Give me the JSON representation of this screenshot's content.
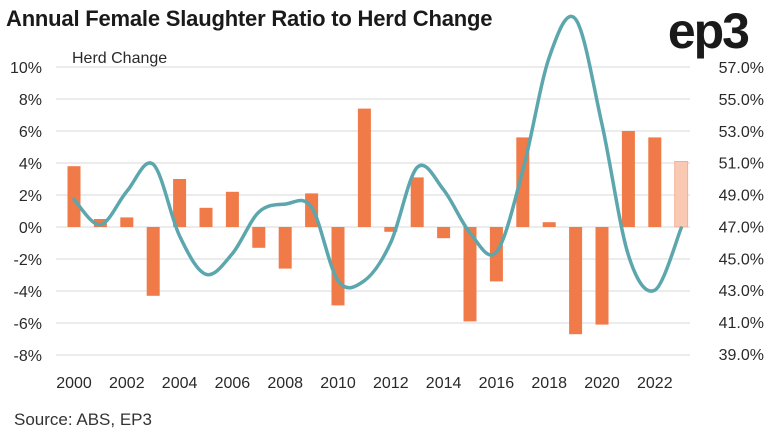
{
  "title": "Annual Female Slaughter Ratio to Herd Change",
  "logo_text": "ep3",
  "source": "Source: ABS, EP3",
  "colors": {
    "bar": "#f07a48",
    "bar_projected": "#f9c9b3",
    "line": "#5ca7ad",
    "grid": "#d9d9d9"
  },
  "chart_data": {
    "type": "bar",
    "title": "Annual Female Slaughter Ratio to Herd Change",
    "series_label": "Herd Change",
    "years": [
      2000,
      2001,
      2002,
      2003,
      2004,
      2005,
      2006,
      2007,
      2008,
      2009,
      2010,
      2011,
      2012,
      2013,
      2014,
      2015,
      2016,
      2017,
      2018,
      2019,
      2020,
      2021,
      2022,
      2023
    ],
    "x_tick_labels": [
      "2000",
      "2002",
      "2004",
      "2006",
      "2008",
      "2010",
      "2012",
      "2014",
      "2016",
      "2018",
      "2020",
      "2022"
    ],
    "series": [
      {
        "name": "Herd Change",
        "axis": "left",
        "type": "bar",
        "values": [
          3.8,
          0.5,
          0.6,
          -4.3,
          3.0,
          1.2,
          2.2,
          -1.3,
          -2.6,
          2.1,
          -4.9,
          7.4,
          -0.3,
          3.1,
          -0.7,
          -5.9,
          -3.4,
          5.6,
          0.3,
          -6.7,
          -6.1,
          6.0,
          5.6,
          4.1
        ],
        "projected_last": true
      },
      {
        "axis": "right",
        "type": "line",
        "values": [
          48.7,
          47.1,
          49.2,
          50.9,
          46.4,
          44.0,
          45.3,
          47.9,
          48.4,
          48.2,
          43.6,
          43.6,
          46.0,
          50.7,
          49.3,
          46.6,
          45.4,
          50.5,
          57.6,
          60.0,
          53.4,
          45.2,
          43.0,
          46.9
        ]
      }
    ],
    "y_left": {
      "min": -8,
      "max": 10,
      "step": 2,
      "tick_labels": [
        "10%",
        "8%",
        "6%",
        "4%",
        "2%",
        "0%",
        "-2%",
        "-4%",
        "-6%",
        "-8%"
      ]
    },
    "y_right": {
      "min": 39,
      "max": 57,
      "step": 2,
      "tick_labels": [
        "57.0%",
        "55.0%",
        "53.0%",
        "51.0%",
        "49.0%",
        "47.0%",
        "45.0%",
        "43.0%",
        "41.0%",
        "39.0%"
      ]
    },
    "grid": true
  }
}
